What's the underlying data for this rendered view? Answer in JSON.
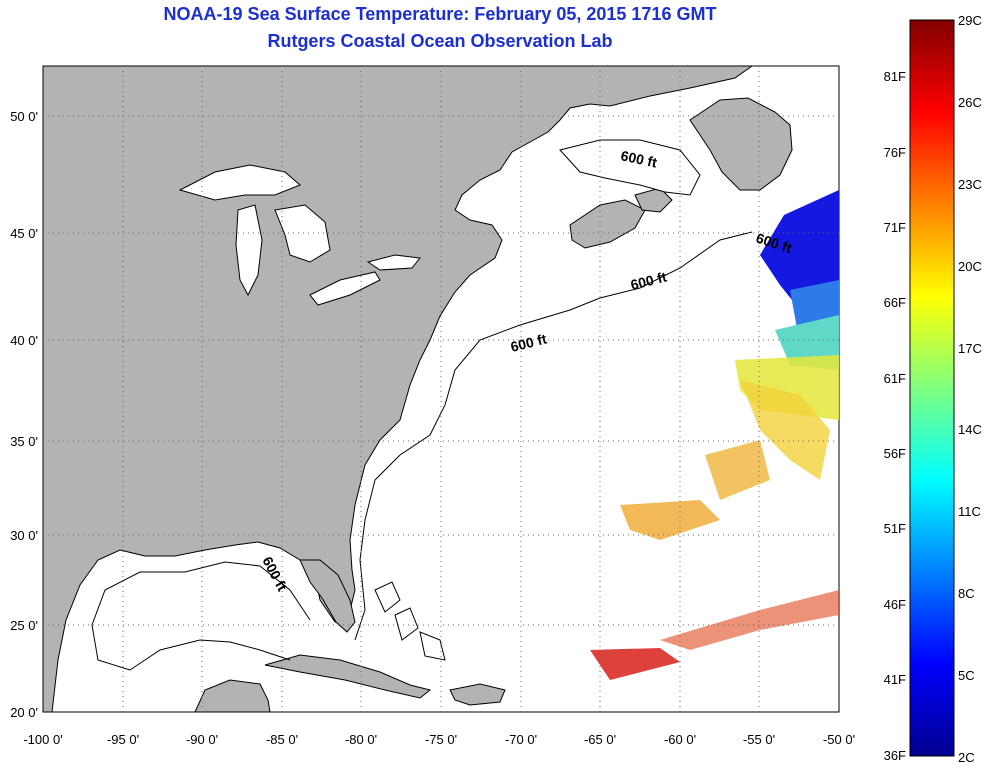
{
  "title": {
    "line1": "NOAA-19 Sea Surface Temperature:  February 05, 2015 1716 GMT",
    "line2": "Rutgers Coastal Ocean Observation Lab"
  },
  "map": {
    "lon_range": [
      -100,
      -50
    ],
    "lat_range": [
      20,
      52.5
    ],
    "lat_ticks": [
      "50 0'",
      "45 0'",
      "40 0'",
      "35 0'",
      "30 0'",
      "25 0'",
      "20 0'"
    ],
    "lon_ticks": [
      "-100 0'",
      "-95 0'",
      "-90 0'",
      "-85 0'",
      "-80 0'",
      "-75 0'",
      "-70 0'",
      "-65 0'",
      "-60 0'",
      "-55 0'",
      "-50 0'"
    ],
    "contour_labels": [
      "600 ft",
      "600 ft",
      "600 ft",
      "600 ft",
      "600 ft"
    ],
    "colors": {
      "land": "#b3b3b3",
      "ocean": "#ffffff",
      "grid": "#666666"
    }
  },
  "colorbar": {
    "c_labels": [
      "29C",
      "26C",
      "23C",
      "20C",
      "17C",
      "14C",
      "11C",
      "8C",
      "5C",
      "2C"
    ],
    "f_labels": [
      "81F",
      "76F",
      "71F",
      "66F",
      "61F",
      "56F",
      "51F",
      "46F",
      "41F",
      "36F"
    ]
  }
}
